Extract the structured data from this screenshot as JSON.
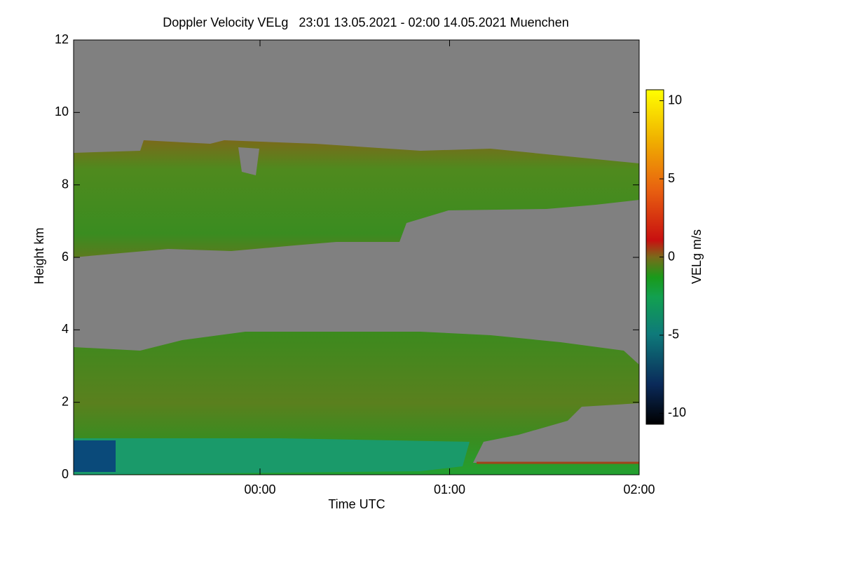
{
  "chart_data": {
    "type": "heatmap",
    "title": "Doppler Velocity VELg   23:01 13.05.2021 - 02:00 14.05.2021 Muenchen",
    "x_label": "Time UTC",
    "y_label": "Height km",
    "xlim": [
      -59,
      120
    ],
    "xticks": [
      {
        "value": 0,
        "label": "00:00"
      },
      {
        "value": 60,
        "label": "01:00"
      },
      {
        "value": 120,
        "label": "02:00"
      }
    ],
    "ylim": [
      0,
      12
    ],
    "yticks": [
      0,
      2,
      4,
      6,
      8,
      10,
      12
    ],
    "colorbar": {
      "label": "VELg m/s",
      "lim": [
        -10.7,
        10.7
      ],
      "ticks": [
        -10,
        -5,
        0,
        5,
        10
      ]
    }
  }
}
